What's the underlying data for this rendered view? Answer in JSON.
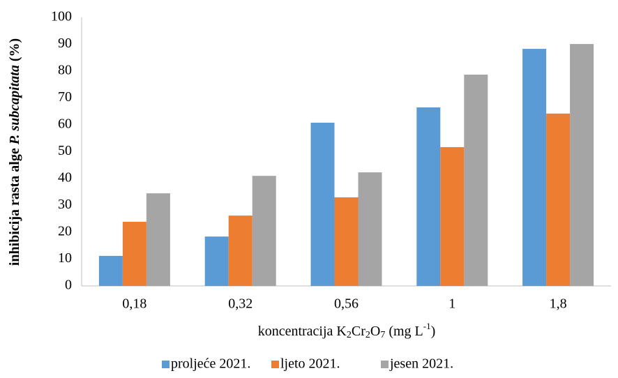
{
  "chart_data": {
    "type": "bar",
    "y_label": [
      "inhibicija rasta alge ",
      "P. subcapitata",
      " (%)"
    ],
    "x_label": [
      "koncentracija K",
      "2",
      "Cr",
      "2",
      "O",
      "7",
      " (mg L",
      "-1",
      ")"
    ],
    "categories": [
      "0,18",
      "0,32",
      "0,56",
      "1",
      "1,8"
    ],
    "series": [
      {
        "name": "proljeće 2021.",
        "color": "#5b9bd5",
        "values": [
          11.2,
          18.4,
          60.8,
          66.5,
          88.3
        ]
      },
      {
        "name": "ljeto 2021.",
        "color": "#ed7d31",
        "values": [
          23.9,
          26.2,
          33.0,
          51.7,
          64.2
        ]
      },
      {
        "name": "jesen 2021.",
        "color": "#a5a5a5",
        "values": [
          34.5,
          41.0,
          42.3,
          78.7,
          90.1
        ]
      }
    ],
    "ylim": [
      0,
      100
    ],
    "yticks": [
      0,
      10,
      20,
      30,
      40,
      50,
      60,
      70,
      80,
      90,
      100
    ],
    "grid": false,
    "legend": "bottom"
  }
}
